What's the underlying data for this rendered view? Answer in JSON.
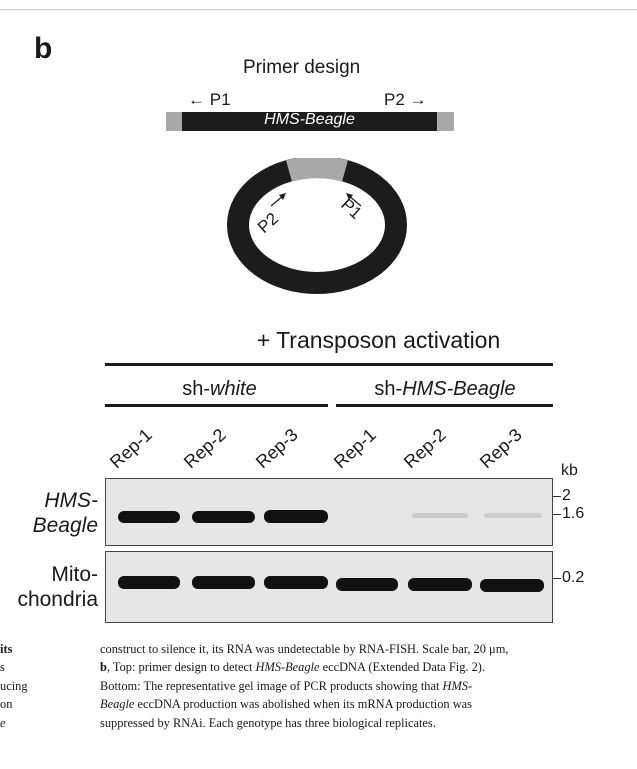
{
  "panel": {
    "letter": "b",
    "primer_title": "Primer design",
    "p1": "P1",
    "p2": "P2",
    "element_name": "HMS-Beagle",
    "circle_p1": "P1",
    "circle_p2": "P2",
    "arrow_left": "←",
    "arrow_right": "→"
  },
  "gel": {
    "condition": "+ Transposon activation",
    "groups": [
      {
        "prefix": "sh-",
        "italic": "white"
      },
      {
        "prefix": "sh-",
        "italic": "HMS-Beagle"
      }
    ],
    "lanes": [
      "Rep-1",
      "Rep-2",
      "Rep-3",
      "Rep-1",
      "Rep-2",
      "Rep-3"
    ],
    "kb_label": "kb",
    "rows": [
      {
        "label_line1": "HMS-",
        "label_line2": "Beagle",
        "markers": [
          "2",
          "1.6"
        ]
      },
      {
        "label_line1": "Mito-",
        "label_line2": "chondria",
        "markers": [
          "0.2"
        ]
      }
    ]
  },
  "caption": {
    "left_fragment": [
      "its",
      "s",
      "ucing",
      "on",
      "e"
    ],
    "line1": "construct to silence it, its RNA was undetectable by RNA-FISH. Scale bar, 20 μm,",
    "line2_bold": "b",
    "line2_a": ", Top: primer design to detect ",
    "line2_italic": "HMS-Beagle",
    "line2_b": " eccDNA (Extended Data Fig. 2).",
    "line3_a": "Bottom: The representative gel image of PCR products showing that ",
    "line3_italic": "HMS-",
    "line4_italic": "Beagle",
    "line4_b": " eccDNA production was abolished when its mRNA production was",
    "line5": "suppressed by RNAi. Each genotype has three biological replicates."
  }
}
